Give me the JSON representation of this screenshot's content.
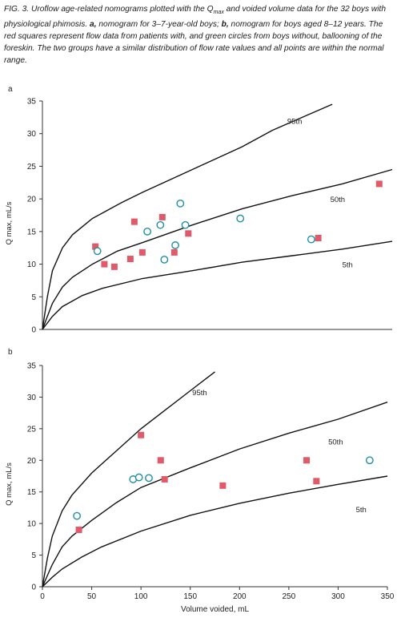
{
  "caption": {
    "part1": "FIG. 3. Uroflow age-related nomograms plotted with the Q",
    "sub": "max",
    "part2": " and voided volume data for the 32 boys with physiological phimosis. ",
    "a_label": "a,",
    "part3": " nomogram for 3–7-year-old boys; ",
    "b_label": "b,",
    "part4": " nomogram for boys aged 8–12 years. The red squares represent flow data from patients with, and green circles from boys without, ballooning of the foreskin. The two groups have a similar distribution of flow rate values and all points are within the normal range."
  },
  "colors": {
    "square": "#e05a6a",
    "circle": "#1f8fa6",
    "curve": "#111111",
    "axis": "#333333"
  },
  "chart_data": [
    {
      "type": "scatter",
      "panel_label": "a",
      "ylabel": "Q max, mL/s",
      "xlabel": "",
      "xlim": [
        0,
        350
      ],
      "ylim": [
        0,
        35
      ],
      "yticks": [
        0,
        5,
        10,
        15,
        20,
        25,
        30,
        35
      ],
      "xticks": [],
      "grid": false,
      "curves": [
        {
          "name": "95th",
          "label_at": [
            245,
            31.5
          ],
          "points": [
            [
              0,
              0
            ],
            [
              5,
              5
            ],
            [
              10,
              9
            ],
            [
              20,
              12.5
            ],
            [
              30,
              14.5
            ],
            [
              50,
              17
            ],
            [
              80,
              19.5
            ],
            [
              100,
              21
            ],
            [
              150,
              24.5
            ],
            [
              200,
              28
            ],
            [
              230,
              30.5
            ],
            [
              260,
              32.5
            ],
            [
              290,
              34.5
            ]
          ]
        },
        {
          "name": "50th",
          "label_at": [
            288,
            19.5
          ],
          "points": [
            [
              0,
              0
            ],
            [
              10,
              4
            ],
            [
              20,
              6.5
            ],
            [
              30,
              8
            ],
            [
              50,
              10
            ],
            [
              75,
              12
            ],
            [
              100,
              13.3
            ],
            [
              150,
              16
            ],
            [
              200,
              18.5
            ],
            [
              250,
              20.5
            ],
            [
              300,
              22.3
            ],
            [
              350,
              24.5
            ]
          ]
        },
        {
          "name": "5th",
          "label_at": [
            300,
            9.5
          ],
          "points": [
            [
              0,
              0
            ],
            [
              10,
              2
            ],
            [
              20,
              3.5
            ],
            [
              40,
              5.2
            ],
            [
              60,
              6.3
            ],
            [
              100,
              7.8
            ],
            [
              150,
              9
            ],
            [
              200,
              10.3
            ],
            [
              250,
              11.3
            ],
            [
              300,
              12.3
            ],
            [
              350,
              13.5
            ]
          ]
        }
      ],
      "series": [
        {
          "marker": "square",
          "points": [
            [
              53,
              12.7
            ],
            [
              62,
              10
            ],
            [
              72,
              9.6
            ],
            [
              88,
              10.8
            ],
            [
              92,
              16.5
            ],
            [
              100,
              11.8
            ],
            [
              120,
              17.2
            ],
            [
              132,
              11.8
            ],
            [
              146,
              14.7
            ],
            [
              276,
              14
            ],
            [
              337,
              22.3
            ]
          ]
        },
        {
          "marker": "circle",
          "points": [
            [
              55,
              12
            ],
            [
              105,
              15
            ],
            [
              118,
              16
            ],
            [
              122,
              10.7
            ],
            [
              133,
              12.9
            ],
            [
              138,
              19.3
            ],
            [
              143,
              16
            ],
            [
              198,
              17
            ],
            [
              269,
              13.8
            ]
          ]
        }
      ]
    },
    {
      "type": "scatter",
      "panel_label": "b",
      "ylabel": "Q max, mL/s",
      "xlabel": "Volume voided, mL",
      "xlim": [
        0,
        350
      ],
      "ylim": [
        0,
        35
      ],
      "yticks": [
        0,
        5,
        10,
        15,
        20,
        25,
        30,
        35
      ],
      "xticks": [
        0,
        50,
        100,
        150,
        200,
        250,
        300,
        350
      ],
      "grid": false,
      "curves": [
        {
          "name": "95th",
          "label_at": [
            152,
            30.3
          ],
          "points": [
            [
              0,
              0
            ],
            [
              5,
              4.5
            ],
            [
              10,
              8
            ],
            [
              20,
              12
            ],
            [
              30,
              14.5
            ],
            [
              50,
              18
            ],
            [
              75,
              21.5
            ],
            [
              100,
              25
            ],
            [
              125,
              28
            ],
            [
              150,
              31
            ],
            [
              175,
              34
            ]
          ]
        },
        {
          "name": "50th",
          "label_at": [
            290,
            22.5
          ],
          "points": [
            [
              0,
              0
            ],
            [
              10,
              3.5
            ],
            [
              20,
              6.3
            ],
            [
              30,
              8
            ],
            [
              50,
              10.5
            ],
            [
              75,
              13.3
            ],
            [
              100,
              15.7
            ],
            [
              150,
              18.8
            ],
            [
              200,
              21.8
            ],
            [
              250,
              24.3
            ],
            [
              300,
              26.5
            ],
            [
              350,
              29.2
            ]
          ]
        },
        {
          "name": "5th",
          "label_at": [
            318,
            11.8
          ],
          "points": [
            [
              0,
              0
            ],
            [
              10,
              1.5
            ],
            [
              20,
              2.8
            ],
            [
              40,
              4.7
            ],
            [
              60,
              6.3
            ],
            [
              100,
              8.8
            ],
            [
              150,
              11.3
            ],
            [
              200,
              13.2
            ],
            [
              250,
              14.8
            ],
            [
              300,
              16.2
            ],
            [
              350,
              17.5
            ]
          ]
        }
      ],
      "series": [
        {
          "marker": "square",
          "points": [
            [
              37,
              9
            ],
            [
              100,
              24
            ],
            [
              120,
              20
            ],
            [
              124,
              17
            ],
            [
              183,
              16
            ],
            [
              268,
              20
            ],
            [
              278,
              16.7
            ]
          ]
        },
        {
          "marker": "circle",
          "points": [
            [
              35,
              11.2
            ],
            [
              92,
              17
            ],
            [
              98,
              17.3
            ],
            [
              108,
              17.2
            ],
            [
              332,
              20
            ]
          ]
        }
      ]
    }
  ]
}
